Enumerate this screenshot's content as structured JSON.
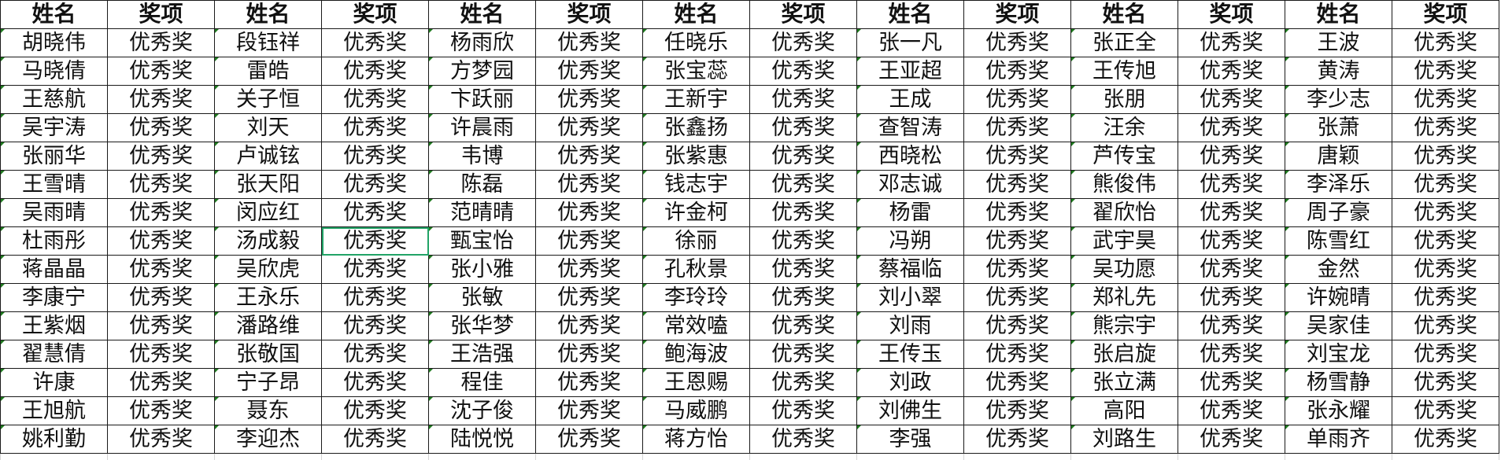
{
  "header": {
    "name_label": "姓名",
    "award_label": "奖项"
  },
  "award_value": "优秀奖",
  "selected_cell": {
    "row": 8,
    "column": 4
  },
  "colors": {
    "grid": "#1a1a1a",
    "selection": "#21a366",
    "indicator": "#1f7a1f"
  },
  "rows": [
    [
      "胡晓伟",
      "段钰祥",
      "杨雨欣",
      "任晓乐",
      "张一凡",
      "张正全",
      "王波"
    ],
    [
      "马晓倩",
      "雷皓",
      "方梦园",
      "张宝蕊",
      "王亚超",
      "王传旭",
      "黄涛"
    ],
    [
      "王慈航",
      "关子恒",
      "卞跃丽",
      "王新宇",
      "王成",
      "张朋",
      "李少志"
    ],
    [
      "吴宇涛",
      "刘天",
      "许晨雨",
      "张鑫扬",
      "查智涛",
      "汪余",
      "张萧"
    ],
    [
      "张丽华",
      "卢诚铉",
      "韦博",
      "张紫惠",
      "西晓松",
      "芦传宝",
      "唐颖"
    ],
    [
      "王雪晴",
      "张天阳",
      "陈磊",
      "钱志宇",
      "邓志诚",
      "熊俊伟",
      "李泽乐"
    ],
    [
      "吴雨晴",
      "闵应红",
      "范晴晴",
      "许金柯",
      "杨雷",
      "翟欣怡",
      "周子豪"
    ],
    [
      "杜雨彤",
      "汤成毅",
      "甄宝怡",
      "徐丽",
      "冯朔",
      "武宇昊",
      "陈雪红"
    ],
    [
      "蒋晶晶",
      "吴欣虎",
      "张小雅",
      "孔秋景",
      "蔡福临",
      "吴功愿",
      "金然"
    ],
    [
      "李康宁",
      "王永乐",
      "张敏",
      "李玲玲",
      "刘小翠",
      "郑礼先",
      "许婉晴"
    ],
    [
      "王紫烟",
      "潘路维",
      "张华梦",
      "常效嗑",
      "刘雨",
      "熊宗宇",
      "吴家佳"
    ],
    [
      "翟慧倩",
      "张敬国",
      "王浩强",
      "鲍海波",
      "王传玉",
      "张启旋",
      "刘宝龙"
    ],
    [
      "许康",
      "宁子昂",
      "程佳",
      "王恩赐",
      "刘政",
      "张立满",
      "杨雪静"
    ],
    [
      "王旭航",
      "聂东",
      "沈子俊",
      "马威鹏",
      "刘佛生",
      "高阳",
      "张永耀"
    ],
    [
      "姚利勤",
      "李迎杰",
      "陆悦悦",
      "蒋方怡",
      "李强",
      "刘路生",
      "单雨齐"
    ]
  ]
}
